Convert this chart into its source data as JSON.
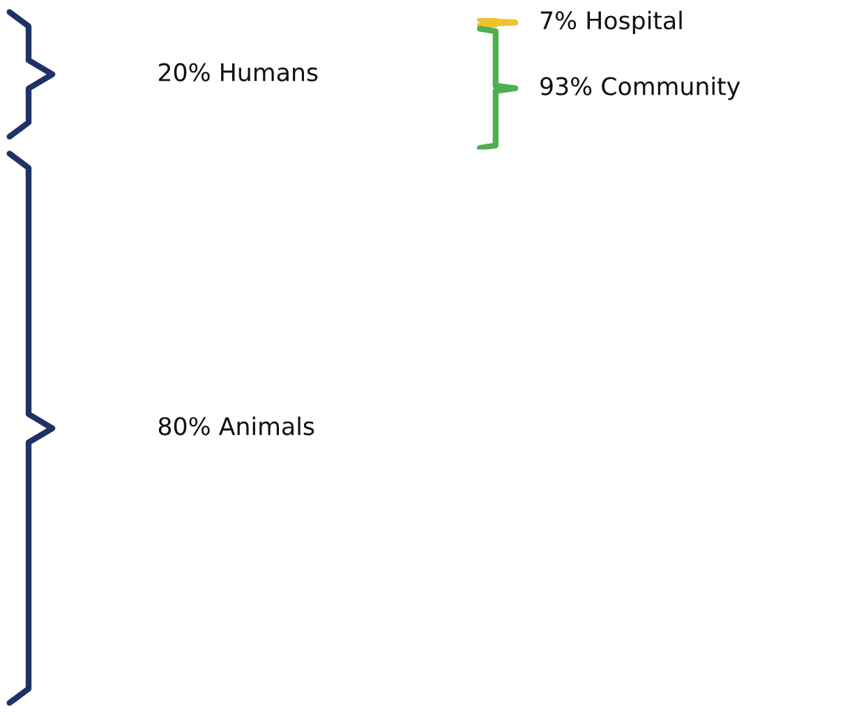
{
  "chart_data": [
    {
      "type": "other",
      "categories": [
        "Humans",
        "Animals"
      ],
      "values": [
        20,
        80
      ],
      "value_labels": [
        "20%",
        "80%"
      ],
      "colors": [
        "#1f3266",
        "#1f3266"
      ]
    },
    {
      "type": "other",
      "categories": [
        "Hospital",
        "Community"
      ],
      "values": [
        7,
        93
      ],
      "value_labels": [
        "7%",
        "93%"
      ],
      "colors": [
        "#f2c12e",
        "#4caf50"
      ]
    }
  ]
}
